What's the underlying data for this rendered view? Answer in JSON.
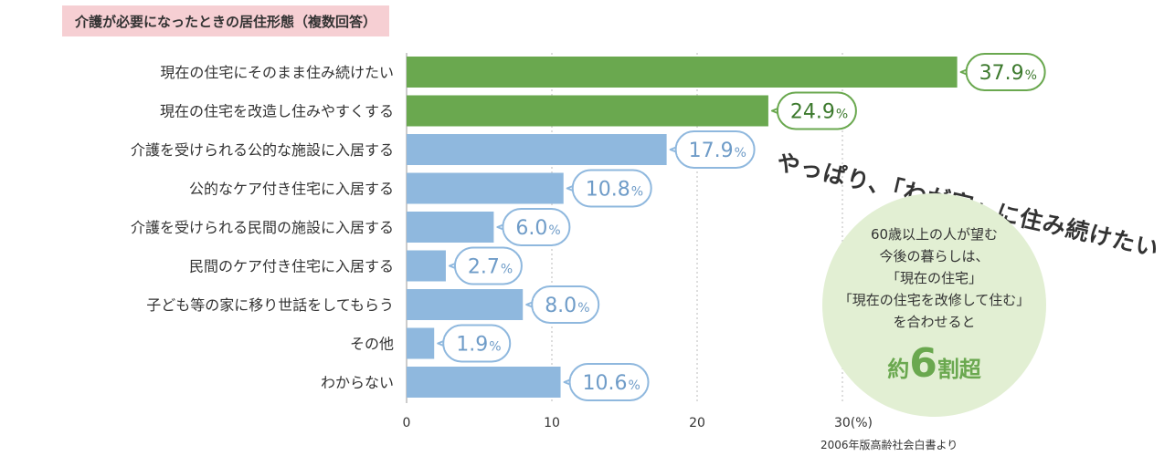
{
  "title": "介護が必要になったときの居住形態（複数回答）",
  "headline": "やっぱり、「わが家」に住み続けたい",
  "callout": {
    "lines": [
      "60歳以上の人が望む",
      "今後の暮らしは、",
      "「現在の住宅」",
      "「現在の住宅を改修して住む」",
      "を合わせると"
    ],
    "big_prefix": "約",
    "big_number": "6",
    "big_suffix": "割超"
  },
  "source": "2006年版高齢社会白書より",
  "colors": {
    "highlight": "#6aa84f",
    "normal": "#8fb8de",
    "label_highlight": "#3d7a2e",
    "label_normal": "#6f9cc8",
    "title_bg": "#f6cfd3",
    "callout_bg": "#e2efd3"
  },
  "chart_data": {
    "type": "bar",
    "orientation": "horizontal",
    "categories": [
      "現在の住宅にそのまま住み続けたい",
      "現在の住宅を改造し住みやすくする",
      "介護を受けられる公的な施設に入居する",
      "公的なケア付き住宅に入居する",
      "介護を受けられる民間の施設に入居する",
      "民間のケア付き住宅に入居する",
      "子ども等の家に移り世話をしてもらう",
      "その他",
      "わからない"
    ],
    "values": [
      37.9,
      24.9,
      17.9,
      10.8,
      6.0,
      2.7,
      8.0,
      1.9,
      10.6
    ],
    "value_labels": [
      "37.9",
      "24.9",
      "17.9",
      "10.8",
      "6.0",
      "2.7",
      "8.0",
      "1.9",
      "10.6"
    ],
    "unit_label": "%",
    "highlighted": [
      true,
      true,
      false,
      false,
      false,
      false,
      false,
      false,
      false
    ],
    "xlim": [
      0,
      40
    ],
    "xticks": [
      0,
      10,
      20,
      30
    ],
    "xtick_labels": [
      "0",
      "10",
      "20",
      "30(%)"
    ],
    "grid": true,
    "xlabel": "",
    "ylabel": ""
  }
}
